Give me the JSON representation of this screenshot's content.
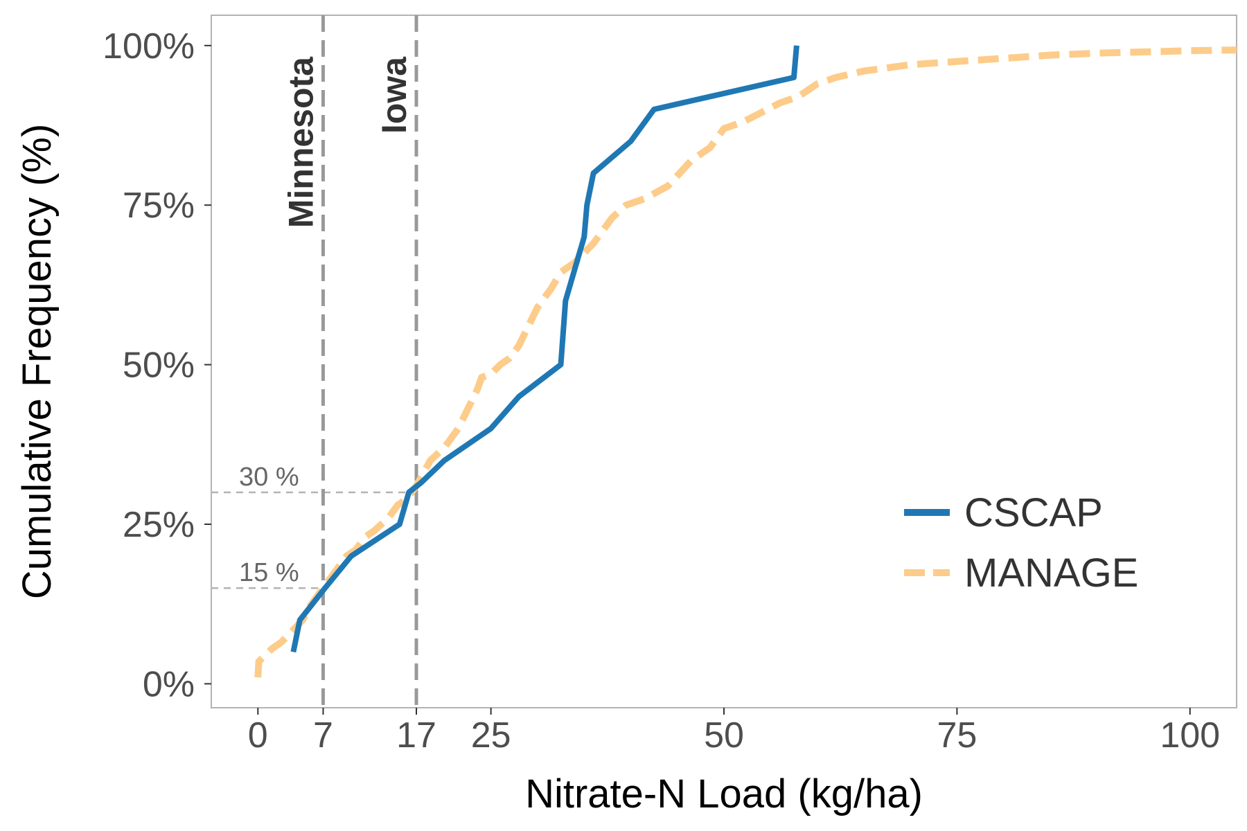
{
  "chart_data": {
    "type": "line",
    "title": "",
    "xlabel": "Nitrate-N Load (kg/ha)",
    "ylabel": "Cumulative Frequency (%)",
    "xlim": [
      -5,
      105
    ],
    "ylim": [
      -3.75,
      104.75
    ],
    "x_ticks": [
      0,
      7,
      17,
      25,
      50,
      75,
      100
    ],
    "x_tick_labels": [
      "0",
      "7",
      "17",
      "25",
      "50",
      "75",
      "100"
    ],
    "y_ticks": [
      0,
      25,
      50,
      75,
      100
    ],
    "y_tick_labels": [
      "0%",
      "25%",
      "50%",
      "75%",
      "100%"
    ],
    "grid": false,
    "legend_position": "bottom-right",
    "series": [
      {
        "name": "CSCAP",
        "style": "solid",
        "color": "#1f78b4",
        "points": [
          [
            3.8,
            5
          ],
          [
            4.5,
            10
          ],
          [
            7.2,
            15
          ],
          [
            10,
            20
          ],
          [
            15.2,
            25
          ],
          [
            16.2,
            30
          ],
          [
            17.5,
            31.5
          ],
          [
            20,
            35
          ],
          [
            25,
            40
          ],
          [
            28,
            45
          ],
          [
            32.5,
            50
          ],
          [
            33,
            60
          ],
          [
            34,
            65
          ],
          [
            35,
            70
          ],
          [
            35.3,
            75
          ],
          [
            36,
            80
          ],
          [
            40,
            85
          ],
          [
            42.5,
            90
          ],
          [
            57.5,
            95
          ],
          [
            57.8,
            100
          ]
        ]
      },
      {
        "name": "MANAGE",
        "style": "dashed",
        "color": "#fdcc8a",
        "points": [
          [
            0,
            1
          ],
          [
            0.1,
            3.5
          ],
          [
            0.8,
            4.5
          ],
          [
            1.5,
            5.5
          ],
          [
            2.5,
            6.5
          ],
          [
            3.5,
            8
          ],
          [
            4.8,
            10
          ],
          [
            5.5,
            12
          ],
          [
            6.5,
            14
          ],
          [
            7.5,
            16
          ],
          [
            9.5,
            20
          ],
          [
            10.5,
            21
          ],
          [
            11.5,
            23
          ],
          [
            12.5,
            24
          ],
          [
            14,
            26
          ],
          [
            15,
            28
          ],
          [
            16,
            29
          ],
          [
            17,
            31
          ],
          [
            18.5,
            35
          ],
          [
            20,
            37
          ],
          [
            21.5,
            40
          ],
          [
            22.5,
            43
          ],
          [
            23.5,
            46
          ],
          [
            24,
            48
          ],
          [
            25,
            48.5
          ],
          [
            26,
            50
          ],
          [
            27,
            51
          ],
          [
            28,
            53
          ],
          [
            29,
            56
          ],
          [
            30,
            59
          ],
          [
            31.5,
            62
          ],
          [
            32.5,
            64.5
          ],
          [
            34,
            66
          ],
          [
            36,
            69
          ],
          [
            38,
            73
          ],
          [
            39.5,
            75
          ],
          [
            41.5,
            76
          ],
          [
            44,
            78
          ],
          [
            46.5,
            82
          ],
          [
            48.5,
            84
          ],
          [
            50,
            87
          ],
          [
            52,
            88
          ],
          [
            54,
            89.5
          ],
          [
            56,
            91
          ],
          [
            58,
            92
          ],
          [
            60,
            94
          ],
          [
            62,
            95
          ],
          [
            65,
            96
          ],
          [
            70,
            97
          ],
          [
            75,
            97.5
          ],
          [
            80,
            98
          ],
          [
            85,
            98.5
          ],
          [
            90,
            98.8
          ],
          [
            95,
            99
          ],
          [
            100,
            99.2
          ],
          [
            105,
            99.3
          ]
        ]
      }
    ],
    "reference_lines": [
      {
        "label": "Minnesota",
        "x": 7
      },
      {
        "label": "Iowa",
        "x": 17
      }
    ],
    "threshold_lines": [
      {
        "label": "15 %",
        "y": 15
      },
      {
        "label": "30 %",
        "y": 30
      }
    ]
  }
}
